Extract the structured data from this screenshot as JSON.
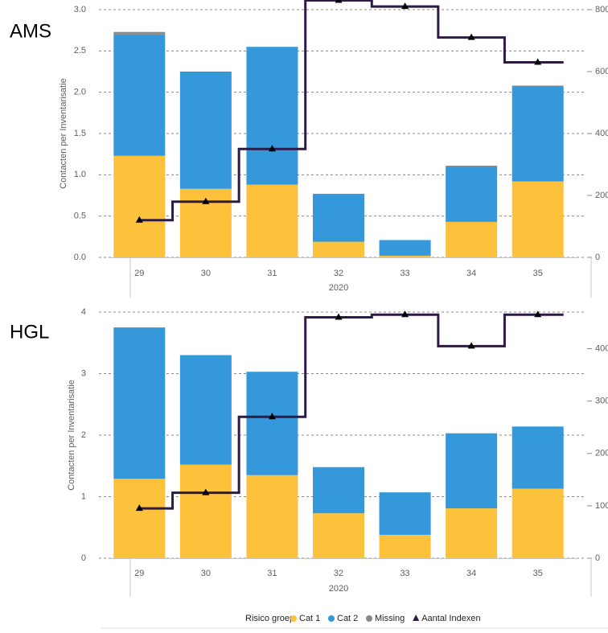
{
  "legend": {
    "title": "Risico groep",
    "items": [
      {
        "label": "Cat 1",
        "color": "#fcc23c",
        "shape": "circle"
      },
      {
        "label": "Cat 2",
        "color": "#3498db",
        "shape": "circle"
      },
      {
        "label": "Missing",
        "color": "#8a8886",
        "shape": "circle"
      },
      {
        "label": "Aantal Indexen",
        "color": "#2e1a47",
        "shape": "triangle"
      }
    ]
  },
  "chart_data": [
    {
      "type": "bar",
      "region_label": "AMS",
      "stacked": true,
      "combo_line": true,
      "categories": [
        "29",
        "30",
        "31",
        "32",
        "33",
        "34",
        "35"
      ],
      "x_group_label": "2020",
      "ylabel": "Contacten per Inventarisatie",
      "ylim": [
        0,
        3.0
      ],
      "yticks": [
        "0.0",
        "0.5",
        "1.0",
        "1.5",
        "2.0",
        "2.5",
        "3.0"
      ],
      "y2lim": [
        0,
        800
      ],
      "y2ticks": [
        "0",
        "200",
        "400",
        "600",
        "800"
      ],
      "grid": true,
      "series": [
        {
          "name": "Cat 1",
          "color": "#fcc23c",
          "values": [
            1.23,
            0.83,
            0.88,
            0.19,
            0.02,
            0.43,
            0.92
          ]
        },
        {
          "name": "Cat 2",
          "color": "#3498db",
          "values": [
            1.47,
            1.42,
            1.67,
            0.58,
            0.19,
            0.67,
            1.15
          ]
        },
        {
          "name": "Missing",
          "color": "#8a8886",
          "values": [
            0.03,
            0,
            0,
            0,
            0,
            0.01,
            0.01
          ]
        }
      ],
      "line_series": {
        "name": "Aantal Indexen",
        "color": "#2e1a47",
        "values": [
          120,
          180,
          350,
          830,
          810,
          710,
          630
        ]
      }
    },
    {
      "type": "bar",
      "region_label": "HGL",
      "stacked": true,
      "combo_line": true,
      "categories": [
        "29",
        "30",
        "31",
        "32",
        "33",
        "34",
        "35"
      ],
      "x_group_label": "2020",
      "ylabel": "Contacten per Inventarisatie",
      "ylim": [
        0,
        4
      ],
      "yticks": [
        "0",
        "1",
        "2",
        "3",
        "4"
      ],
      "y2lim": [
        0,
        470
      ],
      "y2ticks": [
        "0",
        "100",
        "200",
        "300",
        "400"
      ],
      "grid": true,
      "series": [
        {
          "name": "Cat 1",
          "color": "#fcc23c",
          "values": [
            1.29,
            1.52,
            1.35,
            0.73,
            0.38,
            0.81,
            1.13
          ]
        },
        {
          "name": "Cat 2",
          "color": "#3498db",
          "values": [
            2.46,
            1.78,
            1.68,
            0.75,
            0.69,
            1.22,
            1.01
          ]
        },
        {
          "name": "Missing",
          "color": "#8a8886",
          "values": [
            0,
            0,
            0,
            0,
            0,
            0,
            0
          ]
        }
      ],
      "line_series": {
        "name": "Aantal Indexen",
        "color": "#2e1a47",
        "values": [
          95,
          125,
          270,
          460,
          465,
          405,
          465
        ]
      }
    }
  ]
}
